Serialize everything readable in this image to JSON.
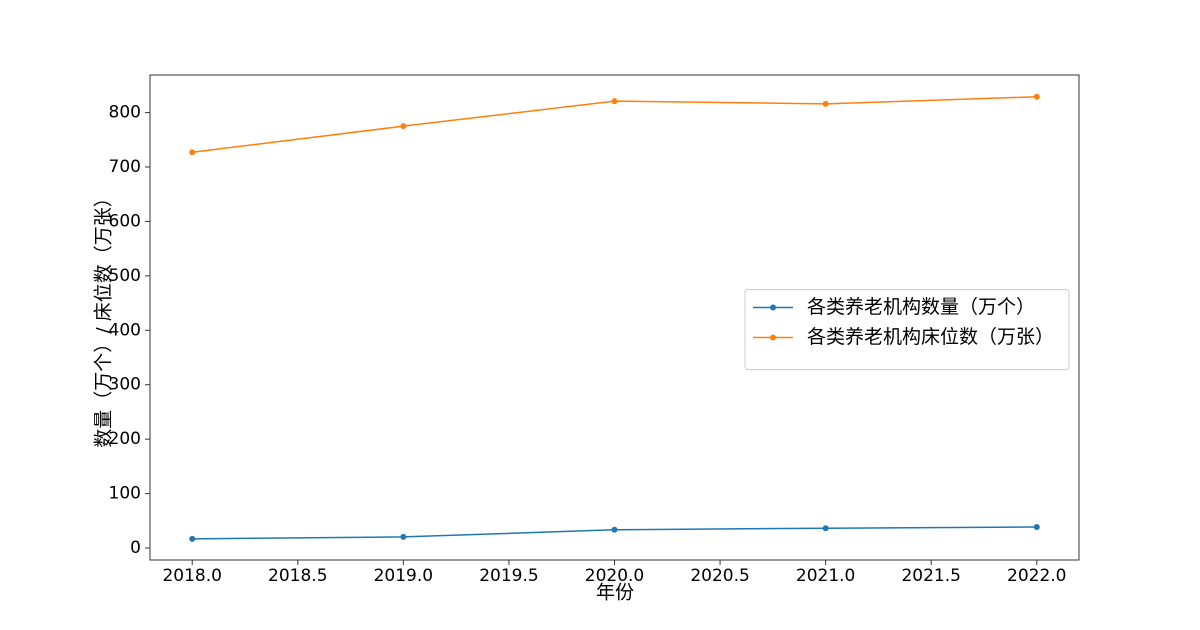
{
  "chart_data": {
    "type": "line",
    "x_label": "年份",
    "y_label": "数量（万个）/ 床位数（万张）",
    "x": [
      2018,
      2019,
      2020,
      2021,
      2022
    ],
    "series": [
      {
        "name": "各类养老机构数量（万个）",
        "color": "#1f77b4",
        "values": [
          16.8,
          20.4,
          33.5,
          36.4,
          38.7
        ]
      },
      {
        "name": "各类养老机构床位数（万张）",
        "color": "#ff7f0e",
        "values": [
          727,
          775,
          821,
          816,
          829
        ]
      }
    ],
    "xlim": [
      2017.8,
      2022.2
    ],
    "xticks": [
      {
        "value": 2018,
        "label": "2018.0"
      },
      {
        "value": 2018.5,
        "label": "2018.5"
      },
      {
        "value": 2019,
        "label": "2019.0"
      },
      {
        "value": 2019.5,
        "label": "2019.5"
      },
      {
        "value": 2020,
        "label": "2020.0"
      },
      {
        "value": 2020.5,
        "label": "2020.5"
      },
      {
        "value": 2021,
        "label": "2021.0"
      },
      {
        "value": 2021.5,
        "label": "2021.5"
      },
      {
        "value": 2022,
        "label": "2022.0"
      }
    ],
    "ylim": [
      -22,
      869
    ],
    "yticks": [
      0,
      100,
      200,
      300,
      400,
      500,
      600,
      700,
      800
    ],
    "grid": false,
    "legend": "right"
  }
}
